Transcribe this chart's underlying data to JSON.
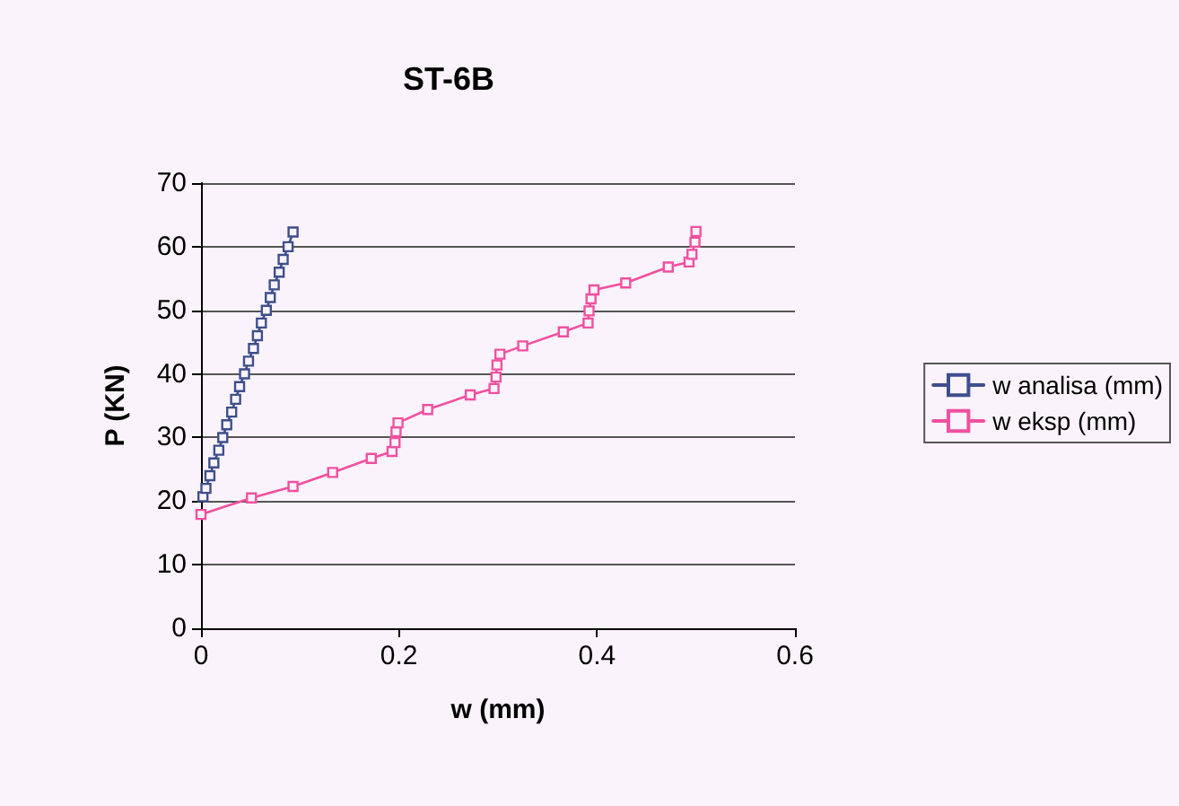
{
  "chart_data": {
    "type": "line",
    "title": "ST-6B",
    "xlabel": "w (mm)",
    "ylabel": "P (KN)",
    "xlim": [
      0,
      0.6
    ],
    "xticks": [
      0,
      0.2,
      0.4,
      0.6
    ],
    "ylim": [
      0,
      70
    ],
    "yticks": [
      0,
      10,
      20,
      30,
      40,
      50,
      60,
      70
    ],
    "grid": "y",
    "legend": "right",
    "marker": "square",
    "line_style": "solid",
    "series": [
      {
        "name": "w analisa (mm)",
        "color": "#3d4f8c",
        "x": [
          0.002,
          0.005,
          0.009,
          0.013,
          0.018,
          0.022,
          0.026,
          0.031,
          0.035,
          0.039,
          0.044,
          0.048,
          0.053,
          0.057,
          0.061,
          0.066,
          0.07,
          0.074,
          0.079,
          0.083,
          0.088,
          0.093
        ],
        "values": [
          20.7,
          22,
          24,
          26,
          28,
          30,
          32,
          34,
          36,
          38,
          40,
          42,
          44,
          46,
          48,
          50,
          52,
          54,
          56,
          58,
          60,
          62.3
        ]
      },
      {
        "name": "w eksp (mm)",
        "color": "#f050a0",
        "x": [
          0,
          0.051,
          0.093,
          0.133,
          0.172,
          0.193,
          0.196,
          0.197,
          0.199,
          0.229,
          0.272,
          0.296,
          0.298,
          0.299,
          0.302,
          0.325,
          0.366,
          0.391,
          0.392,
          0.394,
          0.397,
          0.429,
          0.472,
          0.493,
          0.496,
          0.499,
          0.5
        ],
        "values": [
          17.9,
          20.5,
          22.3,
          24.5,
          26.7,
          27.8,
          29.2,
          30.9,
          32.3,
          34.4,
          36.7,
          37.7,
          39.5,
          41.4,
          43.1,
          44.4,
          46.6,
          48,
          49.9,
          51.8,
          53.2,
          54.3,
          56.8,
          57.6,
          58.8,
          60.7,
          62.4
        ]
      }
    ]
  }
}
